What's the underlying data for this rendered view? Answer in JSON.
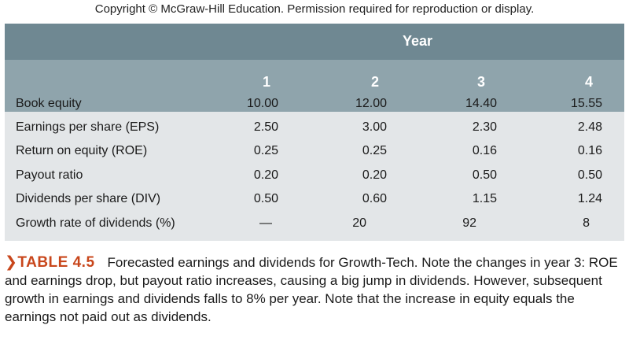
{
  "copyright": "Copyright © McGraw-Hill Education. Permission required for reproduction or display.",
  "table": {
    "group_header": "Year",
    "columns": [
      "1",
      "2",
      "3",
      "4"
    ],
    "rows": [
      {
        "label": "Book equity",
        "values": [
          "10.00",
          "12.00",
          "14.40",
          "15.55"
        ]
      },
      {
        "label": "Earnings per share (EPS)",
        "values": [
          "2.50",
          "3.00",
          "2.30",
          "2.48"
        ]
      },
      {
        "label": "Return on equity (ROE)",
        "values": [
          "0.25",
          "0.25",
          "0.16",
          "0.16"
        ]
      },
      {
        "label": "Payout ratio",
        "values": [
          "0.20",
          "0.20",
          "0.50",
          "0.50"
        ]
      },
      {
        "label": "Dividends per share (DIV)",
        "values": [
          "0.50",
          "0.60",
          "1.15",
          "1.24"
        ]
      },
      {
        "label": "Growth rate of dividends (%)",
        "values": [
          "—",
          "20",
          "92",
          "8"
        ]
      }
    ]
  },
  "caption": {
    "marker": "❯",
    "tag": "TABLE 4.5",
    "text": "Forecasted earnings and dividends for Growth-Tech. Note the changes in year 3: ROE and earnings drop, but payout ratio increases, causing a big jump in dividends. However, subsequent growth in earnings and dividends falls to 8% per year. Note that the increase in equity equals the earnings not paid out as dividends."
  },
  "colors": {
    "header_dark": "#6f8892",
    "header_light": "#8fa4ac",
    "body_bg": "#e3e6e8",
    "accent": "#c8461b"
  }
}
